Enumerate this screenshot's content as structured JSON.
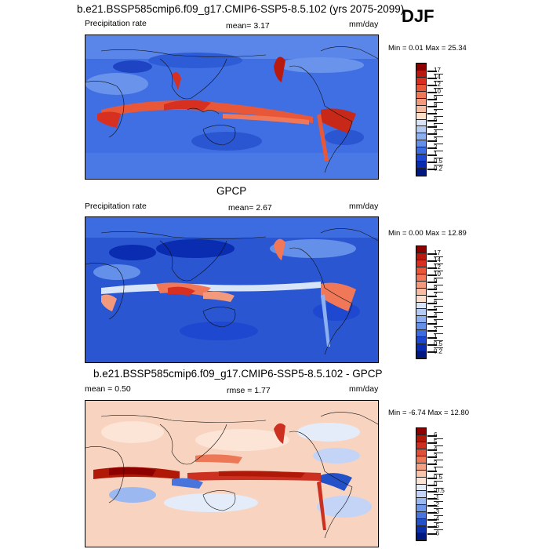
{
  "season": "DJF",
  "panels": [
    {
      "title": "b.e21.BSSP585cmip6.f09_g17.CMIP6-SSP5-8.5.102 (yrs 2075-2099)",
      "left_label": "Precipitation rate",
      "center_label": "mean=  3.17",
      "right_label": "mm/day",
      "minmax": "Min =   0.01 Max =  25.34",
      "colorbar": {
        "labels": [
          "17",
          "14",
          "12",
          "10",
          "9",
          "8",
          "7",
          "6",
          "5",
          "4",
          "3",
          "2",
          "1",
          "0.5",
          "0.2"
        ],
        "colors": [
          "#8c0000",
          "#b81a10",
          "#d83020",
          "#e85838",
          "#f07858",
          "#f49a7c",
          "#f8bca2",
          "#fce0cc",
          "#d8e4f8",
          "#b4ccf4",
          "#8cb0f0",
          "#6490ea",
          "#3c6ce0",
          "#1e48d0",
          "#0a2cb0",
          "#001880"
        ]
      }
    },
    {
      "title": "GPCP",
      "left_label": "Precipitation rate",
      "center_label": "mean=   2.67",
      "right_label": "mm/day",
      "minmax": "Min =   0.00 Max =  12.89",
      "colorbar": {
        "labels": [
          "17",
          "14",
          "12",
          "10",
          "9",
          "8",
          "7",
          "6",
          "5",
          "4",
          "3",
          "2",
          "1",
          "0.5",
          "0.2"
        ],
        "colors": [
          "#8c0000",
          "#b81a10",
          "#d83020",
          "#e85838",
          "#f07858",
          "#f49a7c",
          "#f8bca2",
          "#fce0cc",
          "#d8e4f8",
          "#b4ccf4",
          "#8cb0f0",
          "#6490ea",
          "#3c6ce0",
          "#1e48d0",
          "#0a2cb0",
          "#001880"
        ]
      }
    },
    {
      "title": "b.e21.BSSP585cmip6.f09_g17.CMIP6-SSP5-8.5.102 - GPCP",
      "left_label": "mean =   0.50",
      "center_label": "rmse =  1.77",
      "right_label": "mm/day",
      "minmax": "Min =  -6.74 Max =  12.80",
      "colorbar": {
        "labels": [
          "6",
          "5",
          "4",
          "3",
          "2",
          "1",
          "0.5",
          "0",
          "-0.5",
          "-1",
          "-2",
          "-3",
          "-4",
          "-5",
          "-6"
        ],
        "colors": [
          "#8c0000",
          "#b01808",
          "#cc3020",
          "#e05038",
          "#ec7858",
          "#f4a084",
          "#f8c4ac",
          "#fce4d6",
          "#e4ecfa",
          "#c4d4f6",
          "#9cb8f0",
          "#7098e8",
          "#4874dc",
          "#2450c8",
          "#0c30a8",
          "#001880"
        ]
      }
    }
  ]
}
